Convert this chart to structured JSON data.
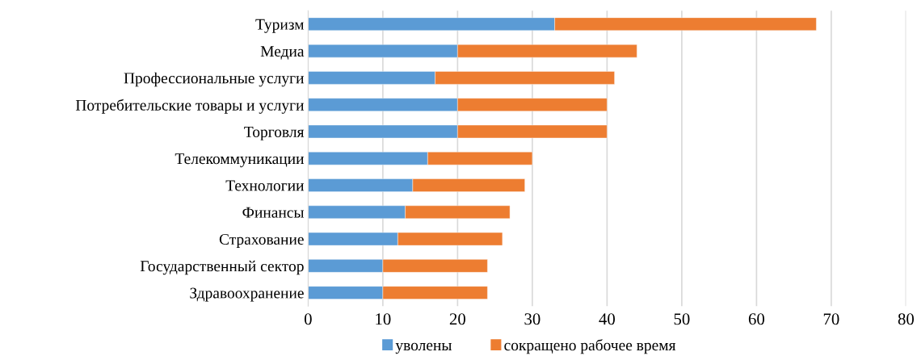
{
  "chart_data": {
    "type": "bar",
    "orientation": "horizontal",
    "stacked": true,
    "categories": [
      "Туризм",
      "Медиа",
      "Профессиональные услуги",
      "Потребительские товары и услуги",
      "Торговля",
      "Телекоммуникации",
      "Технологии",
      "Финансы",
      "Страхование",
      "Государственный сектор",
      "Здравоохранение"
    ],
    "series": [
      {
        "name": "уволены",
        "color": "#5b9bd5",
        "values": [
          33,
          20,
          17,
          20,
          20,
          16,
          14,
          13,
          12,
          10,
          10
        ]
      },
      {
        "name": "сокращено рабочее время",
        "color": "#ed7d31",
        "values": [
          35,
          24,
          24,
          20,
          20,
          14,
          15,
          14,
          14,
          14,
          14
        ]
      }
    ],
    "xlim": [
      0,
      80
    ],
    "xticks": [
      0,
      10,
      20,
      30,
      40,
      50,
      60,
      70,
      80
    ],
    "grid": "x",
    "legend": "bottom"
  }
}
